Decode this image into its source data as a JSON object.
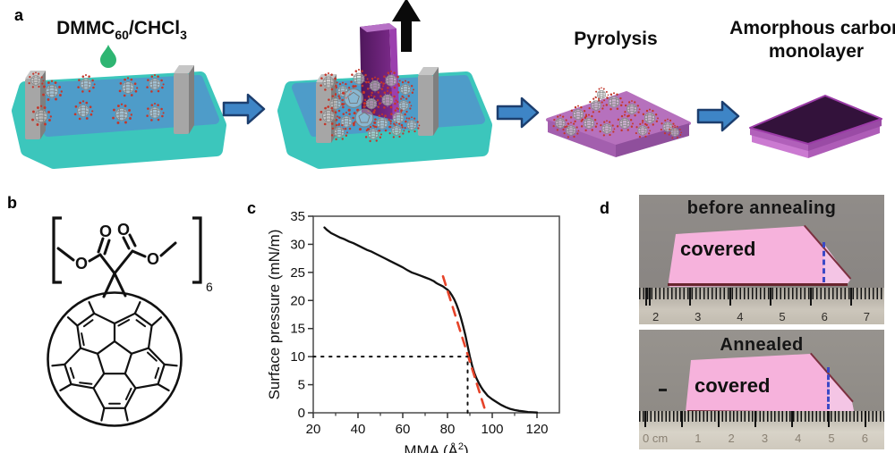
{
  "panel_a": {
    "label": "a",
    "solution": {
      "prefix": "DMMC",
      "sub1": "60",
      "mid": "/CHCl",
      "sub2": "3"
    },
    "pyrolysis_label": "Pyrolysis",
    "final_label_line1": "Amorphous carbon",
    "final_label_line2": "monolayer"
  },
  "panel_b": {
    "label": "b",
    "oxygen": "O",
    "bracket_subscript": "6"
  },
  "panel_c": {
    "label": "c"
  },
  "panel_d": {
    "label": "d",
    "photos": [
      {
        "caption": "before annealing",
        "area_label": "covered",
        "ruler_unit_numbers": [
          "2",
          "3",
          "4",
          "5",
          "6",
          "7"
        ]
      },
      {
        "caption": "Annealed",
        "area_label": "covered",
        "ruler_unit_numbers": [
          "0 cm",
          "1",
          "2",
          "3",
          "4",
          "5",
          "6"
        ]
      }
    ]
  },
  "chart_data": {
    "type": "line",
    "title": "",
    "xlabel_parts": {
      "pre": "MMA (Å",
      "sup": "2",
      "post": ")"
    },
    "ylabel": "Surface pressure (mN/m)",
    "xlim": [
      20,
      130
    ],
    "ylim": [
      0,
      35
    ],
    "xticks": [
      20,
      40,
      60,
      80,
      100,
      120
    ],
    "xminorticks": [
      30,
      50,
      70,
      90,
      110
    ],
    "yticks": [
      0,
      5,
      10,
      15,
      20,
      25,
      30,
      35
    ],
    "grid": false,
    "legend": false,
    "series": [
      {
        "name": "surface pressure isotherm",
        "color": "#111111",
        "width": 2.3,
        "dash": "",
        "points": [
          [
            25,
            33
          ],
          [
            26,
            32.6
          ],
          [
            28,
            32
          ],
          [
            30,
            31.6
          ],
          [
            32,
            31.2
          ],
          [
            34,
            30.9
          ],
          [
            36,
            30.5
          ],
          [
            38,
            30.2
          ],
          [
            40,
            29.8
          ],
          [
            42,
            29.4
          ],
          [
            44,
            29
          ],
          [
            46,
            28.7
          ],
          [
            48,
            28.3
          ],
          [
            50,
            27.9
          ],
          [
            52,
            27.5
          ],
          [
            54,
            27.1
          ],
          [
            56,
            26.7
          ],
          [
            58,
            26.3
          ],
          [
            60,
            25.9
          ],
          [
            62,
            25.4
          ],
          [
            64,
            25
          ],
          [
            66,
            24.7
          ],
          [
            68,
            24.4
          ],
          [
            70,
            24.1
          ],
          [
            72,
            23.8
          ],
          [
            74,
            23.4
          ],
          [
            75,
            23.1
          ],
          [
            76,
            22.9
          ],
          [
            77,
            22.7
          ],
          [
            78,
            22.5
          ],
          [
            79,
            22.2
          ],
          [
            80,
            21.9
          ],
          [
            81,
            21.5
          ],
          [
            82,
            20.9
          ],
          [
            83,
            20.2
          ],
          [
            84,
            19.3
          ],
          [
            85,
            18.2
          ],
          [
            86,
            16.9
          ],
          [
            87,
            15.4
          ],
          [
            88,
            13.8
          ],
          [
            89,
            11.9
          ],
          [
            90,
            10
          ],
          [
            91,
            8.4
          ],
          [
            92,
            7.1
          ],
          [
            93,
            6.1
          ],
          [
            94,
            5.3
          ],
          [
            95,
            4.6
          ],
          [
            96,
            4
          ],
          [
            97,
            3.5
          ],
          [
            98,
            3
          ],
          [
            99,
            2.7
          ],
          [
            100,
            2.4
          ],
          [
            102,
            1.9
          ],
          [
            104,
            1.4
          ],
          [
            106,
            1
          ],
          [
            108,
            0.7
          ],
          [
            110,
            0.5
          ],
          [
            112,
            0.35
          ],
          [
            114,
            0.25
          ],
          [
            116,
            0.15
          ],
          [
            118,
            0.1
          ],
          [
            120,
            0.05
          ]
        ]
      },
      {
        "name": "tangent extrapolation",
        "color": "#e64329",
        "width": 2.6,
        "dash": "10 8",
        "points": [
          [
            78,
            24.3
          ],
          [
            97.2,
            0
          ]
        ]
      }
    ],
    "guide_lines": [
      {
        "type": "h",
        "y": 10,
        "x0": 20,
        "x1": 89
      },
      {
        "type": "v",
        "x": 89,
        "y0": 0,
        "y1": 10
      }
    ]
  },
  "colors": {
    "trough_top": "#4E9CC9",
    "trough_side": "#3CC6BC",
    "barrier_gray": "#A6A6A6",
    "arrow_blue": "#3E85C6",
    "arrow_outline": "#1C3E6E",
    "droplet_green": "#2EB572",
    "substrate_purple": "#6A2178",
    "slab_mauve": "#B671BD",
    "carbon_dark": "#33123B",
    "photo_pink": "#F6B2DC",
    "boundary_dash_blue": "#3B49C6",
    "curve_black": "#111111",
    "tangent_red": "#E64329"
  }
}
